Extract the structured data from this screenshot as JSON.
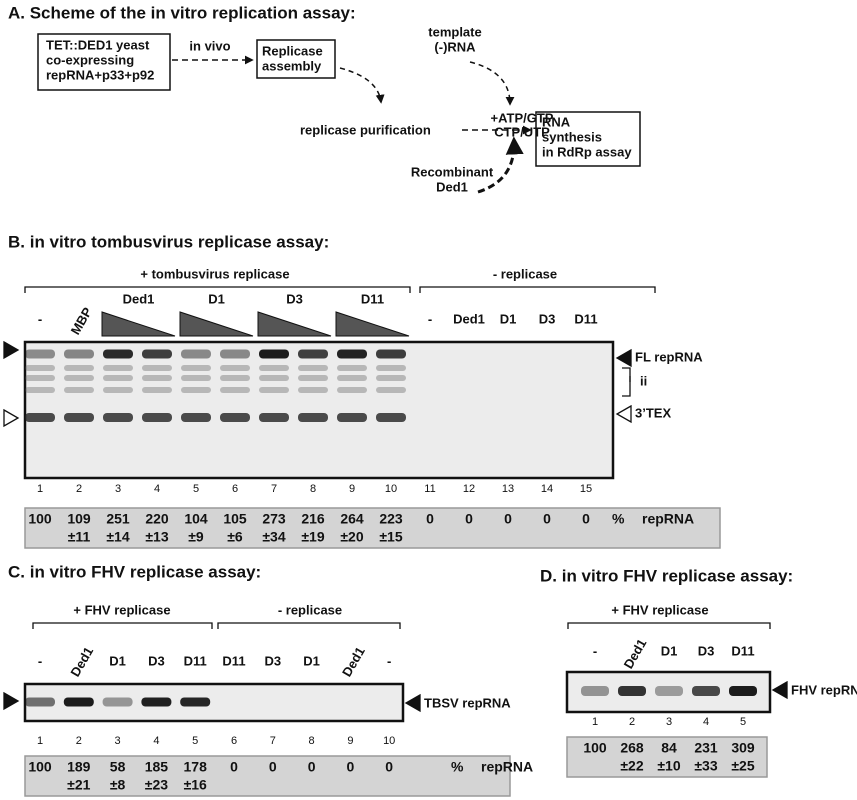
{
  "panel_a": {
    "title": "A. Scheme of the in vitro replication assay:",
    "yeast": [
      "TET::DED1 yeast",
      "co-expressing",
      "repRNA+p33+p92"
    ],
    "in_vivo": "in vivo",
    "assembly": [
      "Replicase",
      "assembly"
    ],
    "template": [
      "template",
      "(-)RNA"
    ],
    "purification": "replicase purification",
    "ntp": [
      "+ATP/GTP",
      "CTP/UTP"
    ],
    "synthesis": [
      "RNA",
      "synthesis",
      "in RdRp assay"
    ],
    "recombinant": [
      "Recombinant",
      "Ded1"
    ]
  },
  "panel_b": {
    "title": "B. in vitro tombusvirus replicase assay:",
    "groups": [
      "+ tombusvirus replicase",
      "- replicase"
    ],
    "lanes": [
      "-",
      "MBP",
      "Ded1",
      "D1",
      "D3",
      "D11",
      "-",
      "Ded1",
      "D1",
      "D3",
      "D11"
    ],
    "bands": [
      "FL repRNA",
      "ii",
      "3’TEX"
    ],
    "lane_numbers": [
      1,
      2,
      3,
      4,
      5,
      6,
      7,
      8,
      9,
      10,
      11,
      12,
      13,
      14,
      15
    ],
    "values": [
      100,
      109,
      251,
      220,
      104,
      105,
      273,
      216,
      264,
      223,
      0,
      0,
      0,
      0,
      0
    ],
    "errors": [
      null,
      "±11",
      "±14",
      "±13",
      "±9",
      "±6",
      "±34",
      "±19",
      "±20",
      "±15",
      null,
      null,
      null,
      null,
      null
    ],
    "unit": "%",
    "measure": "repRNA"
  },
  "panel_c": {
    "title": "C. in vitro FHV replicase assay:",
    "groups": [
      "+ FHV replicase",
      "- replicase"
    ],
    "lanes": [
      "-",
      "Ded1",
      "D1",
      "D3",
      "D11",
      "D11",
      "D3",
      "D1",
      "Ded1",
      "-"
    ],
    "band": "TBSV repRNA",
    "lane_numbers": [
      1,
      2,
      3,
      4,
      5,
      6,
      7,
      8,
      9,
      10
    ],
    "values": [
      100,
      189,
      58,
      185,
      178,
      0,
      0,
      0,
      0,
      0
    ],
    "errors": [
      null,
      "±21",
      "±8",
      "±23",
      "±16",
      null,
      null,
      null,
      null,
      null
    ],
    "unit": "%",
    "measure": "repRNA"
  },
  "panel_d": {
    "title": "D. in vitro FHV replicase assay:",
    "group": "+ FHV replicase",
    "lanes": [
      "-",
      "Ded1",
      "D1",
      "D3",
      "D11"
    ],
    "band": "FHV repRNA",
    "lane_numbers": [
      1,
      2,
      3,
      4,
      5
    ],
    "values": [
      100,
      268,
      84,
      231,
      309
    ],
    "errors": [
      null,
      "±22",
      "±10",
      "±33",
      "±25"
    ]
  }
}
